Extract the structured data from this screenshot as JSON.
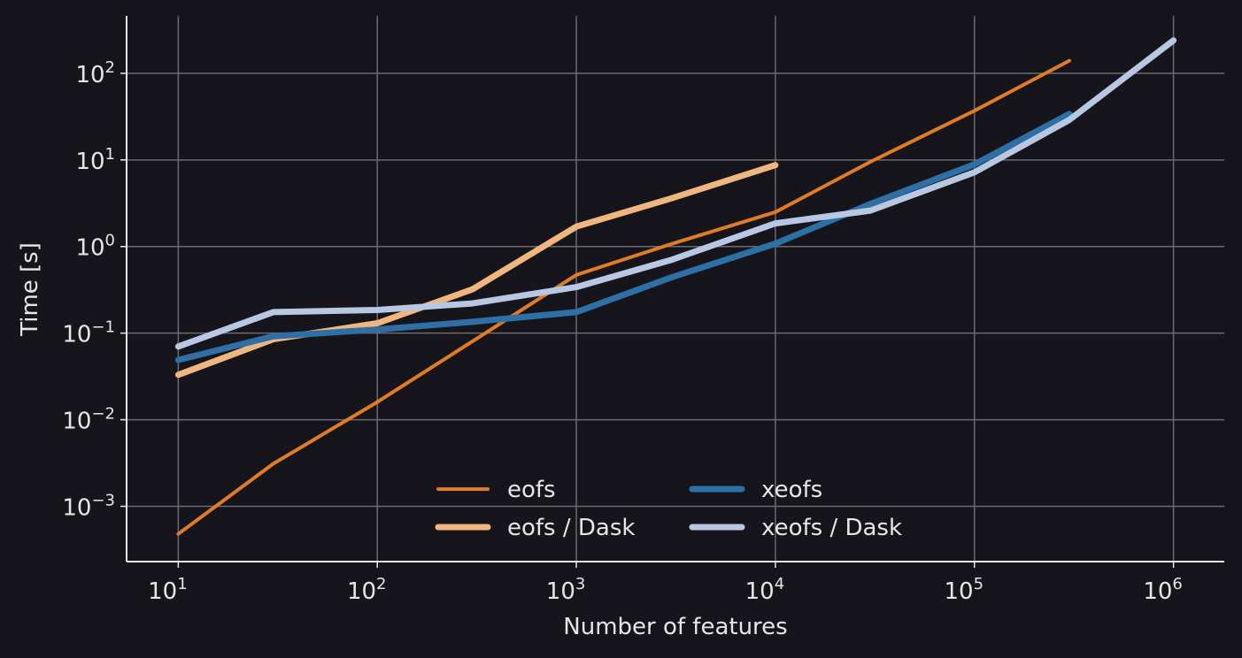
{
  "chart_data": {
    "type": "line",
    "xlabel": "Number of features",
    "ylabel": "Time [s]",
    "xscale": "log",
    "yscale": "log",
    "xlim": [
      5.5,
      1800000
    ],
    "ylim": [
      0.00023,
      460
    ],
    "grid": true,
    "legend": {
      "placement": "bottom-center",
      "columns": 2
    },
    "xticks": [
      {
        "value": 10,
        "base": "10",
        "exp": "1"
      },
      {
        "value": 100,
        "base": "10",
        "exp": "2"
      },
      {
        "value": 1000,
        "base": "10",
        "exp": "3"
      },
      {
        "value": 10000,
        "base": "10",
        "exp": "4"
      },
      {
        "value": 100000,
        "base": "10",
        "exp": "5"
      },
      {
        "value": 1000000,
        "base": "10",
        "exp": "6"
      }
    ],
    "yticks": [
      {
        "value": 0.001,
        "base": "10",
        "exp": "−3"
      },
      {
        "value": 0.01,
        "base": "10",
        "exp": "−2"
      },
      {
        "value": 0.1,
        "base": "10",
        "exp": "−1"
      },
      {
        "value": 1,
        "base": "10",
        "exp": "0"
      },
      {
        "value": 10,
        "base": "10",
        "exp": "1"
      },
      {
        "value": 100,
        "base": "10",
        "exp": "2"
      }
    ],
    "series": [
      {
        "name": "eofs",
        "color": "#e07b27",
        "width": "thin",
        "x": [
          10,
          30,
          100,
          300,
          1000,
          3000,
          10000,
          30000,
          100000,
          300000
        ],
        "y": [
          0.00048,
          0.0031,
          0.016,
          0.08,
          0.47,
          1.07,
          2.5,
          9.5,
          37,
          140
        ]
      },
      {
        "name": "eofs / Dask",
        "color": "#f0b680",
        "width": "thick",
        "x": [
          10,
          30,
          100,
          300,
          1000,
          3000,
          10000
        ],
        "y": [
          0.033,
          0.085,
          0.13,
          0.32,
          1.7,
          3.6,
          8.7
        ]
      },
      {
        "name": "xeofs",
        "color": "#2e6fa5",
        "width": "thick",
        "x": [
          10,
          30,
          100,
          300,
          1000,
          3000,
          10000,
          30000,
          100000,
          300000
        ],
        "y": [
          0.049,
          0.092,
          0.11,
          0.135,
          0.175,
          0.44,
          1.08,
          3.1,
          8.9,
          34
        ]
      },
      {
        "name": "xeofs / Dask",
        "color": "#b8c8e3",
        "width": "thick",
        "x": [
          10,
          30,
          100,
          300,
          1000,
          3000,
          10000,
          30000,
          100000,
          300000,
          1000000
        ],
        "y": [
          0.07,
          0.175,
          0.185,
          0.22,
          0.34,
          0.7,
          1.85,
          2.6,
          7.2,
          29,
          240
        ]
      }
    ]
  }
}
